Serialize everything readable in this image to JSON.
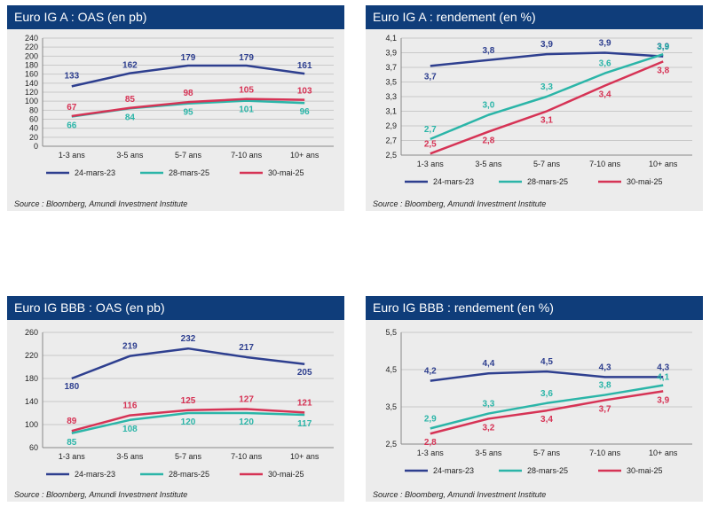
{
  "source": "Source : Bloomberg, Amundi Investment Institute",
  "legend": [
    "24-mars-23",
    "28-mars-25",
    "30-mai-25"
  ],
  "colors": {
    "header": "#0f3d7a",
    "series": [
      "#2e3f8f",
      "#2bb5a8",
      "#d63355"
    ]
  },
  "chart_data": [
    {
      "type": "line",
      "title": "Euro IG A : OAS (en pb)",
      "categories": [
        "1-3 ans",
        "3-5 ans",
        "5-7 ans",
        "7-10 ans",
        "10+ ans"
      ],
      "yticks": [
        "0",
        "20",
        "40",
        "60",
        "80",
        "100",
        "120",
        "140",
        "160",
        "180",
        "200",
        "220",
        "240"
      ],
      "ylim": [
        0,
        240
      ],
      "series": [
        {
          "name": "24-mars-23",
          "values": [
            133,
            162,
            179,
            179,
            161
          ],
          "labels": [
            "133",
            "162",
            "179",
            "179",
            "161"
          ]
        },
        {
          "name": "28-mars-25",
          "values": [
            66,
            84,
            95,
            101,
            96
          ],
          "labels": [
            "66",
            "84",
            "95",
            "101",
            "96"
          ]
        },
        {
          "name": "30-mai-25",
          "values": [
            67,
            85,
            98,
            105,
            103
          ],
          "labels": [
            "67",
            "85",
            "98",
            "105",
            "103"
          ]
        }
      ]
    },
    {
      "type": "line",
      "title": "Euro IG A : rendement (en %)",
      "categories": [
        "1-3 ans",
        "3-5 ans",
        "5-7 ans",
        "7-10 ans",
        "10+ ans"
      ],
      "yticks": [
        "2,5",
        "2,7",
        "2,9",
        "3,1",
        "3,3",
        "3,5",
        "3,7",
        "3,9",
        "4,1"
      ],
      "ylim": [
        2.5,
        4.1
      ],
      "series": [
        {
          "name": "24-mars-23",
          "values": [
            3.72,
            3.8,
            3.88,
            3.9,
            3.85
          ],
          "labels": [
            "3,7",
            "3,8",
            "3,9",
            "3,9",
            "3,9"
          ]
        },
        {
          "name": "28-mars-25",
          "values": [
            2.72,
            3.05,
            3.3,
            3.62,
            3.88
          ],
          "labels": [
            "2,7",
            "3,0",
            "3,3",
            "3,6",
            "3,9"
          ]
        },
        {
          "name": "30-mai-25",
          "values": [
            2.52,
            2.82,
            3.1,
            3.45,
            3.78
          ],
          "labels": [
            "2,5",
            "2,8",
            "3,1",
            "3,4",
            "3,8"
          ]
        }
      ]
    },
    {
      "type": "line",
      "title": "Euro IG BBB :  OAS (en pb)",
      "categories": [
        "1-3 ans",
        "3-5 ans",
        "5-7 ans",
        "7-10 ans",
        "10+ ans"
      ],
      "yticks": [
        "60",
        "100",
        "140",
        "180",
        "220",
        "260"
      ],
      "ylim": [
        60,
        260
      ],
      "series": [
        {
          "name": "24-mars-23",
          "values": [
            180,
            219,
            232,
            217,
            205
          ],
          "labels": [
            "180",
            "219",
            "232",
            "217",
            "205"
          ]
        },
        {
          "name": "28-mars-25",
          "values": [
            85,
            108,
            120,
            120,
            117
          ],
          "labels": [
            "85",
            "108",
            "120",
            "120",
            "117"
          ]
        },
        {
          "name": "30-mai-25",
          "values": [
            89,
            116,
            125,
            127,
            121
          ],
          "labels": [
            "89",
            "116",
            "125",
            "127",
            "121"
          ]
        }
      ]
    },
    {
      "type": "line",
      "title": "Euro IG BBB :  rendement (en %)",
      "categories": [
        "1-3 ans",
        "3-5 ans",
        "5-7 ans",
        "7-10 ans",
        "10+ ans"
      ],
      "yticks": [
        "2,5",
        "3,5",
        "4,5",
        "5,5"
      ],
      "ylim": [
        2.5,
        5.5
      ],
      "series": [
        {
          "name": "24-mars-23",
          "values": [
            4.2,
            4.4,
            4.45,
            4.3,
            4.3
          ],
          "labels": [
            "4,2",
            "4,4",
            "4,5",
            "4,3",
            "4,3"
          ]
        },
        {
          "name": "28-mars-25",
          "values": [
            2.92,
            3.32,
            3.6,
            3.82,
            4.08
          ],
          "labels": [
            "2,9",
            "3,3",
            "3,6",
            "3,8",
            "4,1"
          ]
        },
        {
          "name": "30-mai-25",
          "values": [
            2.78,
            3.18,
            3.4,
            3.68,
            3.92
          ],
          "labels": [
            "2,8",
            "3,2",
            "3,4",
            "3,7",
            "3,9"
          ]
        }
      ]
    }
  ]
}
